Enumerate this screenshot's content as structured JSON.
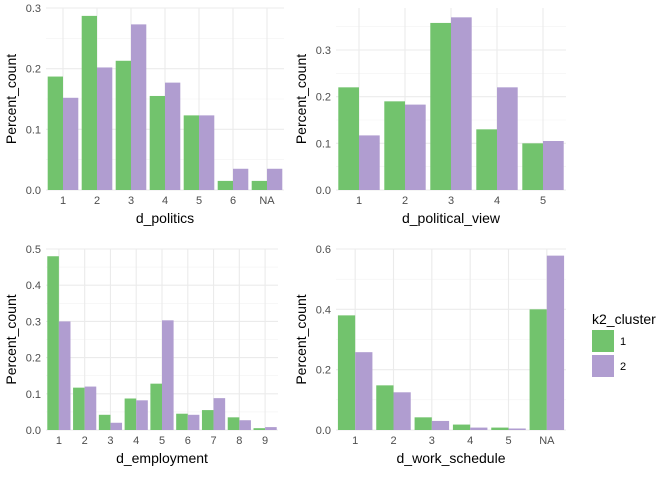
{
  "legend": {
    "title": "k2_cluster",
    "placement": "right",
    "items": [
      {
        "label": "1",
        "color": "#72C36D"
      },
      {
        "label": "2",
        "color": "#B09DD0"
      }
    ]
  },
  "chart_data": [
    {
      "type": "bar",
      "xlabel": "d_politics",
      "ylabel": "Percent_count",
      "categories": [
        "1",
        "2",
        "3",
        "4",
        "5",
        "6",
        "NA"
      ],
      "series": [
        {
          "name": "1",
          "values": [
            0.187,
            0.287,
            0.213,
            0.155,
            0.123,
            0.015,
            0.015
          ]
        },
        {
          "name": "2",
          "values": [
            0.152,
            0.202,
            0.273,
            0.177,
            0.123,
            0.035,
            0.035
          ]
        }
      ],
      "ylim": [
        0,
        0.3
      ],
      "yticks": [
        0,
        0.1,
        0.2,
        0.3
      ],
      "ytick_labels": [
        "0.0",
        "0.1",
        "0.2",
        "0.3"
      ],
      "grid": true
    },
    {
      "type": "bar",
      "xlabel": "d_political_view",
      "ylabel": "Percent_count",
      "categories": [
        "1",
        "2",
        "3",
        "4",
        "5"
      ],
      "series": [
        {
          "name": "1",
          "values": [
            0.22,
            0.19,
            0.358,
            0.13,
            0.1
          ]
        },
        {
          "name": "2",
          "values": [
            0.117,
            0.183,
            0.37,
            0.22,
            0.105
          ]
        }
      ],
      "ylim": [
        0,
        0.39
      ],
      "yticks": [
        0,
        0.1,
        0.2,
        0.3
      ],
      "ytick_labels": [
        "0.0",
        "0.1",
        "0.2",
        "0.3"
      ],
      "grid": true
    },
    {
      "type": "bar",
      "xlabel": "d_employment",
      "ylabel": "Percent_count",
      "categories": [
        "1",
        "2",
        "3",
        "4",
        "5",
        "6",
        "7",
        "8",
        "9"
      ],
      "series": [
        {
          "name": "1",
          "values": [
            0.48,
            0.117,
            0.042,
            0.087,
            0.128,
            0.045,
            0.055,
            0.035,
            0.005
          ]
        },
        {
          "name": "2",
          "values": [
            0.3,
            0.12,
            0.02,
            0.082,
            0.303,
            0.042,
            0.088,
            0.027,
            0.008
          ]
        }
      ],
      "ylim": [
        0,
        0.5
      ],
      "yticks": [
        0,
        0.1,
        0.2,
        0.3,
        0.4,
        0.5
      ],
      "ytick_labels": [
        "0.0",
        "0.1",
        "0.2",
        "0.3",
        "0.4",
        "0.5"
      ],
      "grid": true
    },
    {
      "type": "bar",
      "xlabel": "d_work_schedule",
      "ylabel": "Percent_count",
      "categories": [
        "1",
        "2",
        "3",
        "4",
        "5",
        "NA"
      ],
      "series": [
        {
          "name": "1",
          "values": [
            0.38,
            0.148,
            0.042,
            0.018,
            0.008,
            0.4
          ]
        },
        {
          "name": "2",
          "values": [
            0.258,
            0.125,
            0.03,
            0.008,
            0.005,
            0.578
          ]
        }
      ],
      "ylim": [
        0,
        0.6
      ],
      "yticks": [
        0,
        0.2,
        0.4,
        0.6
      ],
      "ytick_labels": [
        "0.0",
        "0.2",
        "0.4",
        "0.6"
      ],
      "grid": true
    }
  ]
}
